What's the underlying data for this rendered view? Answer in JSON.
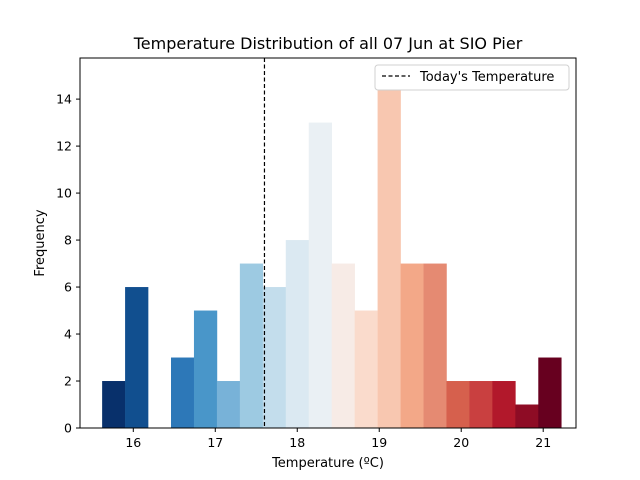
{
  "chart_data": {
    "type": "bar",
    "title": "Temperature Distribution of all 07 Jun at SIO Pier",
    "xlabel": "Temperature (ºC)",
    "ylabel": "Frequency",
    "xlim": [
      15.35,
      21.4
    ],
    "ylim": [
      0,
      15.75
    ],
    "xticks": [
      16,
      17,
      18,
      19,
      20,
      21
    ],
    "yticks": [
      0,
      2,
      4,
      6,
      8,
      10,
      12,
      14
    ],
    "bin_width": 0.28,
    "bins": [
      {
        "x0": 15.62,
        "x1": 15.9,
        "count": 2,
        "color": "#08306b"
      },
      {
        "x0": 15.9,
        "x1": 16.18,
        "count": 6,
        "color": "#114f8f"
      },
      {
        "x0": 16.18,
        "x1": 16.46,
        "count": 0,
        "color": "#1f5fa6"
      },
      {
        "x0": 16.46,
        "x1": 16.74,
        "count": 3,
        "color": "#2d78b8"
      },
      {
        "x0": 16.74,
        "x1": 17.02,
        "count": 5,
        "color": "#4996c9"
      },
      {
        "x0": 17.02,
        "x1": 17.3,
        "count": 2,
        "color": "#78b2d8"
      },
      {
        "x0": 17.3,
        "x1": 17.58,
        "count": 7,
        "color": "#9dcae2"
      },
      {
        "x0": 17.58,
        "x1": 17.86,
        "count": 6,
        "color": "#c3ddec"
      },
      {
        "x0": 17.86,
        "x1": 18.14,
        "count": 8,
        "color": "#dbe9f2"
      },
      {
        "x0": 18.14,
        "x1": 18.42,
        "count": 13,
        "color": "#eaf0f4"
      },
      {
        "x0": 18.42,
        "x1": 18.7,
        "count": 7,
        "color": "#f7ebe6"
      },
      {
        "x0": 18.7,
        "x1": 18.98,
        "count": 5,
        "color": "#fadbcc"
      },
      {
        "x0": 18.98,
        "x1": 19.26,
        "count": 15,
        "color": "#f8c7b0"
      },
      {
        "x0": 19.26,
        "x1": 19.54,
        "count": 7,
        "color": "#f3a888"
      },
      {
        "x0": 19.54,
        "x1": 19.82,
        "count": 7,
        "color": "#e58a72"
      },
      {
        "x0": 19.82,
        "x1": 20.1,
        "count": 2,
        "color": "#d6604d"
      },
      {
        "x0": 20.1,
        "x1": 20.38,
        "count": 2,
        "color": "#c94040"
      },
      {
        "x0": 20.38,
        "x1": 20.66,
        "count": 2,
        "color": "#b2182b"
      },
      {
        "x0": 20.66,
        "x1": 20.94,
        "count": 1,
        "color": "#8e0c25"
      },
      {
        "x0": 20.94,
        "x1": 21.22,
        "count": 3,
        "color": "#67001f"
      }
    ],
    "reference_line": {
      "x": 17.6,
      "style": "dashed",
      "color": "#000000"
    },
    "legend": {
      "position": "top-right",
      "entries": [
        {
          "label": "Today's Temperature",
          "style": "dashed"
        }
      ]
    },
    "grid": false
  }
}
